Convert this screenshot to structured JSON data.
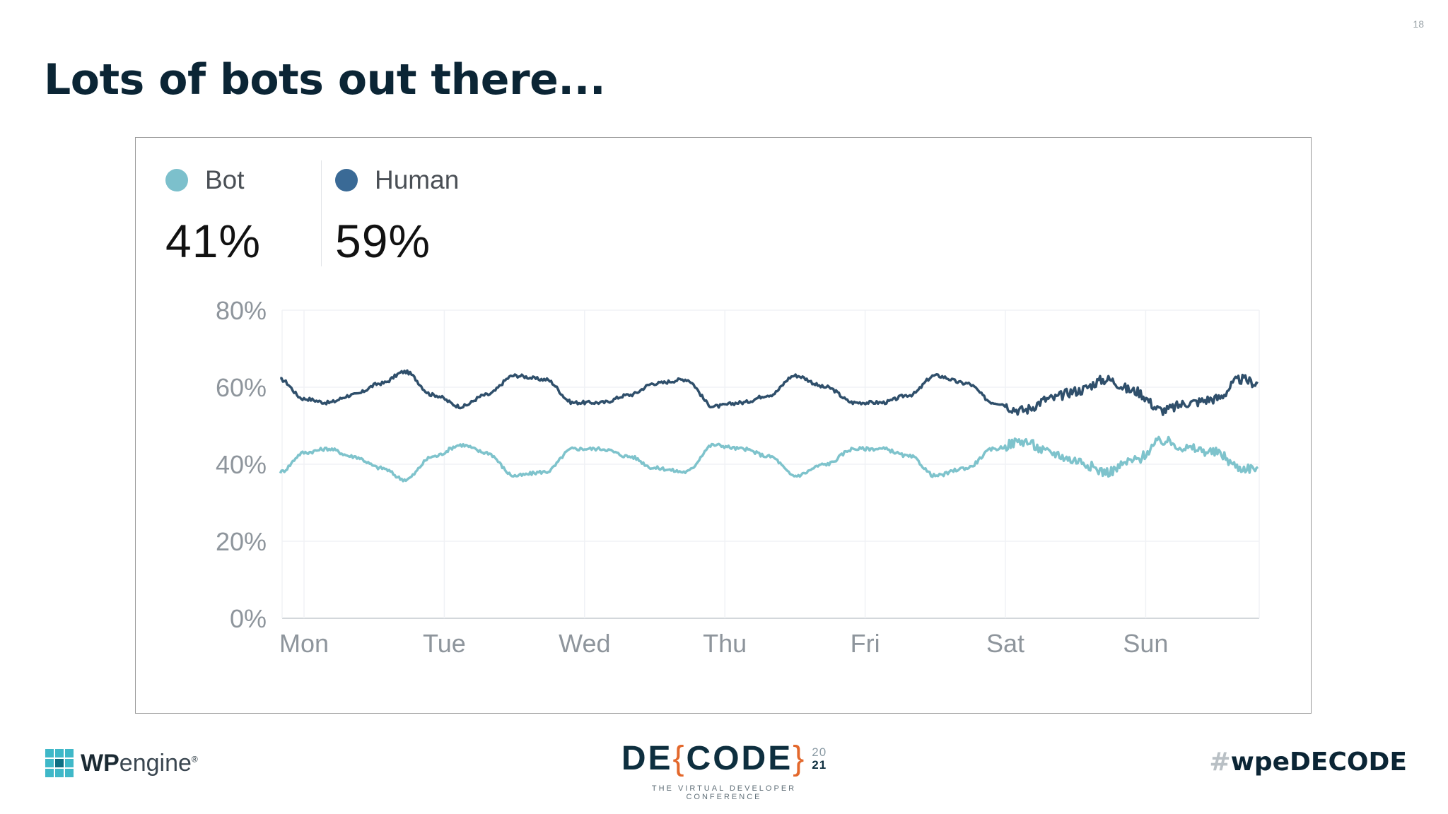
{
  "page_number": "18",
  "title": "Lots of bots out there...",
  "legend": {
    "bot": {
      "label": "Bot",
      "value": "41%",
      "color": "#7cc0cc"
    },
    "human": {
      "label": "Human",
      "value": "59%",
      "color": "#3a6a96"
    }
  },
  "chart_data": {
    "type": "line",
    "title": "",
    "xlabel": "",
    "ylabel": "",
    "x_tick_labels": [
      "Mon",
      "Tue",
      "Wed",
      "Thu",
      "Fri",
      "Sat",
      "Sun"
    ],
    "y_tick_labels": [
      "0%",
      "20%",
      "40%",
      "60%",
      "80%"
    ],
    "y_ticks": [
      0,
      20,
      40,
      60,
      80
    ],
    "ylim": [
      0,
      80
    ],
    "xlim_days": [
      -0.17,
      6.8
    ],
    "grid": true,
    "series": [
      {
        "name": "Human",
        "color": "#2f4f6b",
        "x_days": [
          -0.17,
          0.0,
          0.17,
          0.35,
          0.55,
          0.72,
          0.92,
          1.12,
          1.3,
          1.5,
          1.72,
          1.92,
          2.12,
          2.32,
          2.5,
          2.72,
          2.92,
          3.12,
          3.32,
          3.5,
          3.72,
          3.92,
          4.12,
          4.32,
          4.5,
          4.72,
          4.92,
          5.12,
          5.32,
          5.5,
          5.72,
          5.92,
          6.12,
          6.32,
          6.5,
          6.68,
          6.8
        ],
        "values": [
          62,
          57,
          56,
          58,
          61,
          64,
          58,
          55,
          58,
          63,
          62,
          56,
          56,
          58,
          61,
          62,
          55,
          56,
          58,
          63,
          60,
          56,
          56,
          58,
          63,
          61,
          56,
          54,
          57,
          59,
          62,
          59,
          54,
          56,
          57,
          62,
          61
        ]
      },
      {
        "name": "Bot",
        "color": "#7ec3cc",
        "x_days": [
          -0.17,
          0.0,
          0.17,
          0.35,
          0.55,
          0.72,
          0.92,
          1.12,
          1.3,
          1.5,
          1.72,
          1.92,
          2.12,
          2.32,
          2.5,
          2.72,
          2.92,
          3.12,
          3.32,
          3.5,
          3.72,
          3.92,
          4.12,
          4.32,
          4.5,
          4.72,
          4.92,
          5.12,
          5.32,
          5.5,
          5.72,
          5.92,
          6.12,
          6.32,
          6.5,
          6.68,
          6.8
        ],
        "values": [
          38,
          43,
          44,
          42,
          39,
          36,
          42,
          45,
          43,
          37,
          38,
          44,
          44,
          42,
          39,
          38,
          45,
          44,
          42,
          37,
          40,
          44,
          44,
          42,
          37,
          39,
          44,
          46,
          43,
          41,
          38,
          41,
          46,
          44,
          43,
          39,
          39
        ]
      }
    ]
  },
  "footer": {
    "wpengine": {
      "brand_prefix": "WP",
      "brand_suffix": "engine",
      "registered": "®"
    },
    "decode": {
      "prefix": "DE",
      "open_brace": "{",
      "word": "CODE",
      "close_brace": "}",
      "year_top": "20",
      "year_bottom": "21",
      "tagline": "THE VIRTUAL DEVELOPER CONFERENCE"
    },
    "hashtag": {
      "symbol": "#",
      "text": "wpeDECODE"
    }
  }
}
